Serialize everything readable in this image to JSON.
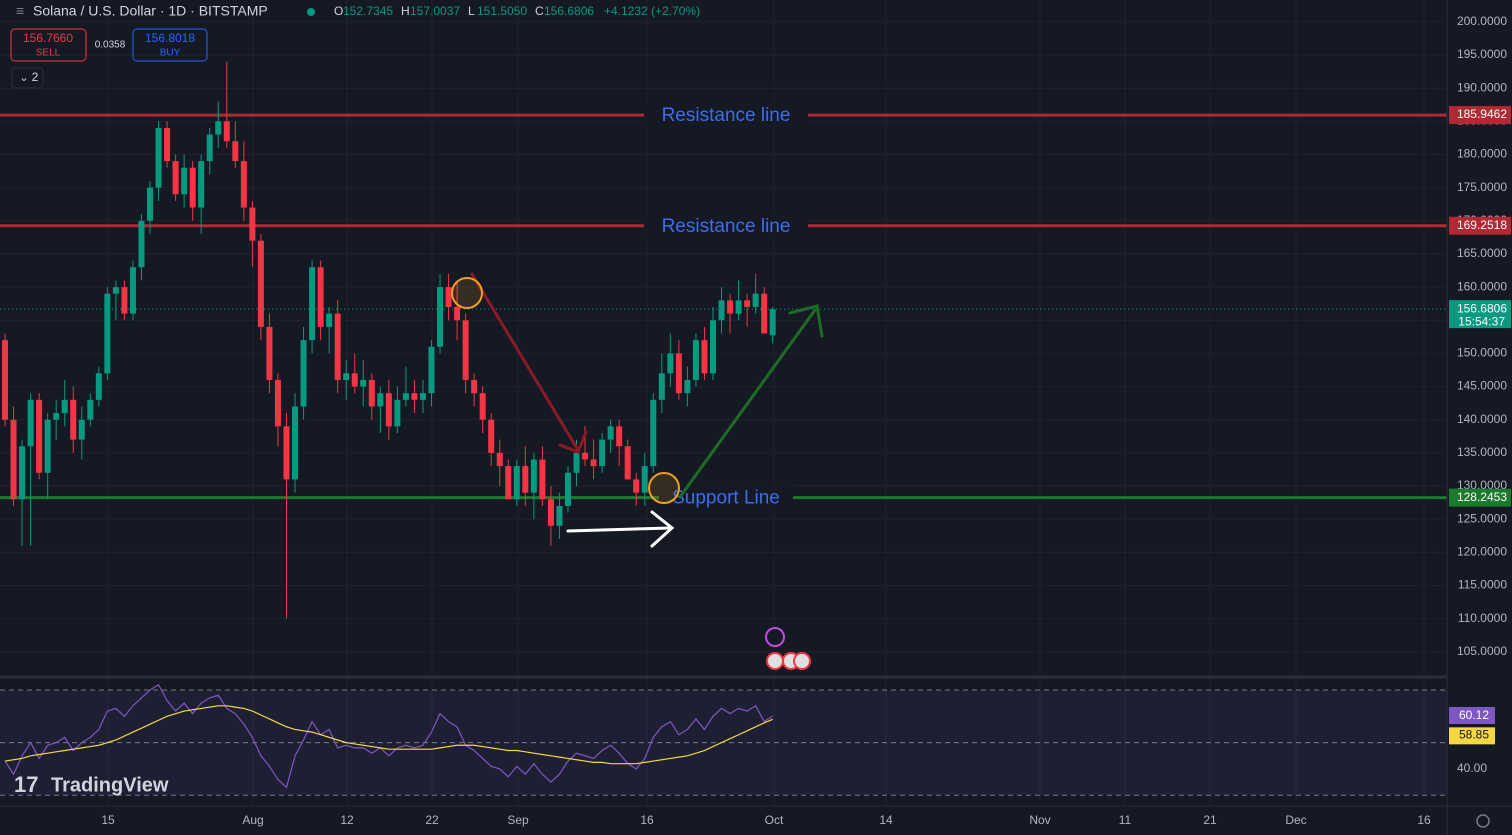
{
  "header": {
    "symbol": "Solana / U.S. Dollar · 1D · BITSTAMP",
    "ohlc": [
      {
        "key": "O",
        "value": 152.7345
      },
      {
        "key": "H",
        "value": 157.0037
      },
      {
        "key": "L",
        "value": 151.505
      },
      {
        "key": "C",
        "value": 156.6806
      }
    ],
    "ohlc_labels": [
      "152.7345",
      "157.0037",
      "151.5050",
      "156.6806"
    ],
    "change": "+4.1232 (+2.70%)",
    "sell": {
      "price": "156.7660",
      "label": "SELL"
    },
    "spread": 0.0358,
    "buy": {
      "price": "156.8018",
      "label": "BUY"
    },
    "indicators": "2"
  },
  "chart_data": {
    "type": "candlestick",
    "title": "Solana / U.S. Dollar · 1D · BITSTAMP",
    "up_color": "#089981",
    "down_color": "#f23645",
    "open": [
      152,
      140,
      128,
      136,
      143,
      132,
      140,
      141,
      143,
      137,
      140,
      143,
      147,
      159,
      160,
      156,
      163,
      170,
      175,
      184,
      179,
      174,
      178,
      172,
      179,
      183,
      185,
      182,
      179,
      172,
      167,
      154,
      146,
      139,
      131,
      142,
      152,
      163,
      154,
      156,
      146,
      147,
      145,
      146,
      142,
      144,
      139,
      143,
      144,
      143,
      144,
      151,
      160,
      157,
      155,
      146,
      144,
      140,
      135,
      133,
      128,
      133,
      129,
      134,
      128,
      124,
      127,
      132,
      135,
      134,
      133,
      137,
      139,
      136,
      131,
      129,
      133,
      143,
      147,
      150,
      144,
      146,
      152,
      147,
      155,
      158,
      156,
      158,
      157,
      159,
      152.7345
    ],
    "high": [
      153,
      142,
      137,
      144,
      144,
      141,
      143,
      146,
      145,
      142,
      144,
      148,
      160,
      161,
      161,
      164,
      171,
      176,
      185,
      185,
      180,
      180,
      179,
      180,
      184,
      188,
      194,
      185,
      182,
      173,
      168,
      156,
      147,
      141,
      144,
      154,
      164,
      164,
      157,
      158,
      149,
      150,
      149,
      147,
      145,
      146,
      145,
      148,
      146,
      146,
      152,
      162,
      162,
      161,
      156,
      147,
      145,
      141,
      137,
      134,
      134,
      136,
      135,
      136,
      130,
      129,
      133,
      137,
      139,
      137,
      138,
      140,
      140,
      137,
      132,
      135,
      144,
      150,
      153,
      152,
      148,
      153,
      154,
      157,
      160,
      159,
      161,
      159,
      162,
      160,
      157.0037
    ],
    "low": [
      139,
      127,
      121,
      121,
      131,
      128,
      137,
      139,
      135,
      134,
      139,
      142,
      146,
      155,
      155,
      155,
      161,
      168,
      173,
      178,
      173,
      172,
      170,
      168,
      177,
      181,
      181,
      178,
      170,
      163,
      152,
      144,
      136,
      110,
      129,
      140,
      150,
      152,
      150,
      144,
      143,
      144,
      142,
      140,
      138,
      137,
      138,
      142,
      141,
      141,
      142,
      150,
      155,
      152,
      144,
      142,
      138,
      133,
      130,
      128,
      127,
      127,
      125,
      127,
      121,
      122,
      126,
      130,
      133,
      131,
      132,
      135,
      133,
      131,
      127,
      127,
      132,
      141,
      145,
      143,
      142,
      145,
      146,
      146,
      153,
      153,
      155,
      154,
      156,
      153,
      151.505
    ],
    "close": [
      140,
      128,
      136,
      143,
      132,
      140,
      141,
      143,
      137,
      140,
      143,
      147,
      159,
      160,
      156,
      163,
      170,
      175,
      184,
      179,
      174,
      178,
      172,
      179,
      183,
      185,
      182,
      179,
      172,
      167,
      154,
      146,
      139,
      131,
      142,
      152,
      163,
      154,
      156,
      146,
      147,
      145,
      146,
      142,
      144,
      139,
      143,
      144,
      143,
      144,
      151,
      160,
      157,
      155,
      146,
      144,
      140,
      135,
      133,
      128,
      133,
      129,
      134,
      128,
      124,
      127,
      132,
      135,
      134,
      133,
      137,
      139,
      136,
      131,
      129,
      133,
      143,
      147,
      150,
      144,
      146,
      152,
      147,
      155,
      158,
      156,
      158,
      157,
      159,
      153,
      156.6806
    ],
    "ylim": [
      101.5,
      203.3
    ],
    "yticks": [
      {
        "value": 105,
        "label": "105.0000"
      },
      {
        "value": 110,
        "label": "110.0000"
      },
      {
        "value": 115,
        "label": "115.0000"
      },
      {
        "value": 120,
        "label": "120.0000"
      },
      {
        "value": 125,
        "label": "125.0000"
      },
      {
        "value": 130,
        "label": "130.0000"
      },
      {
        "value": 135,
        "label": "135.0000"
      },
      {
        "value": 140,
        "label": "140.0000"
      },
      {
        "value": 145,
        "label": "145.0000"
      },
      {
        "value": 150,
        "label": "150.0000"
      },
      {
        "value": 155,
        "label": "155.0000"
      },
      {
        "value": 160,
        "label": "160.0000"
      },
      {
        "value": 165,
        "label": "165.0000"
      },
      {
        "value": 170,
        "label": "170.0000"
      },
      {
        "value": 175,
        "label": "175.0000"
      },
      {
        "value": 180,
        "label": "180.0000"
      },
      {
        "value": 185,
        "label": "185.0000"
      },
      {
        "value": 190,
        "label": "190.0000"
      },
      {
        "value": 195,
        "label": "195.0000"
      },
      {
        "value": 200,
        "label": "200.0000"
      }
    ],
    "xticks": [
      "15",
      "Aug",
      "12",
      "22",
      "Sep",
      "16",
      "Oct",
      "14",
      "Nov",
      "11",
      "21",
      "Dec",
      "16"
    ],
    "lines": [
      {
        "label": "Resistance line",
        "value": 185.9462,
        "value_label": "185.9462",
        "color": "#b22833"
      },
      {
        "label": "Resistance line",
        "value": 169.2518,
        "value_label": "169.2518",
        "color": "#b22833"
      },
      {
        "label": "Support Line",
        "value": 128.2453,
        "value_label": "128.2453",
        "color": "#1b7a2c"
      }
    ],
    "last": {
      "value": 156.6806,
      "label": "156.6806",
      "countdown": "15:54:37"
    },
    "grid": true
  },
  "rsi": {
    "values": [
      43,
      38,
      45,
      50,
      44,
      49,
      50,
      52,
      47,
      50,
      52,
      55,
      62,
      63,
      60,
      64,
      67,
      70,
      72,
      66,
      62,
      65,
      61,
      65,
      67,
      68,
      63,
      61,
      57,
      52,
      45,
      41,
      36,
      33,
      45,
      51,
      58,
      53,
      55,
      48,
      49,
      48,
      48,
      46,
      48,
      45,
      48,
      49,
      48,
      49,
      54,
      61,
      58,
      56,
      49,
      47,
      44,
      41,
      40,
      37,
      41,
      38,
      42,
      38,
      35,
      38,
      43,
      46,
      45,
      44,
      47,
      49,
      46,
      42,
      40,
      44,
      52,
      56,
      58,
      53,
      55,
      59,
      55,
      60,
      63,
      61,
      63,
      62,
      64,
      58,
      60.12
    ],
    "ma": [
      43,
      43.5,
      44,
      45,
      45.5,
      46,
      46.5,
      47,
      47.5,
      48,
      48.5,
      49,
      50,
      51,
      52.5,
      54,
      55.5,
      57,
      58.5,
      60,
      61,
      62,
      62.5,
      63,
      63.5,
      64,
      64,
      63.5,
      63,
      62,
      60.5,
      59,
      57.5,
      56,
      55,
      54.5,
      54,
      53,
      52,
      51,
      50,
      49.5,
      49,
      48.5,
      48,
      47.5,
      47.5,
      47.5,
      47.5,
      47.5,
      47.5,
      48,
      48.5,
      49,
      49,
      49,
      48.5,
      48,
      47.5,
      47,
      47,
      46.5,
      46,
      45.5,
      45,
      44.5,
      44,
      43.5,
      43,
      42.5,
      42.5,
      42,
      42,
      42,
      42,
      42.5,
      43,
      43.5,
      44,
      44.5,
      45,
      46,
      47,
      48.5,
      50,
      51.5,
      53,
      54.5,
      56,
      57.5,
      58.85
    ],
    "ylim": [
      26.3,
      73.8
    ],
    "levels": [
      70,
      50,
      30
    ],
    "yticks": [
      {
        "value": 40,
        "label": "40.00"
      }
    ]
  },
  "branding": "TradingView"
}
